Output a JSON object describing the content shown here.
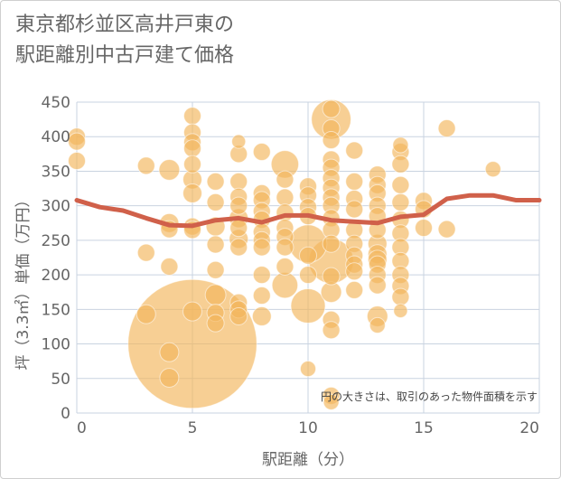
{
  "title_line1": "東京都杉並区高井戸東の",
  "title_line2": "駅距離別中古戸建て価格",
  "chart_data": {
    "type": "scatter",
    "xlabel": "駅距離（分）",
    "ylabel": "坪（3.3㎡）単価（万円）",
    "xlim": [
      0,
      20
    ],
    "ylim": [
      0,
      450
    ],
    "xticks": [
      0,
      5,
      10,
      15,
      20
    ],
    "yticks": [
      0,
      50,
      100,
      150,
      200,
      250,
      300,
      350,
      400,
      450
    ],
    "grid": true,
    "annotation": "円の大きさは、取引のあった物件面積を示す",
    "colors": {
      "bubble": "#f2b55a",
      "line": "#d0604a",
      "grid": "#c9d3e0"
    },
    "bubbles": [
      {
        "x": 0,
        "y": 400,
        "s": 1
      },
      {
        "x": 0,
        "y": 393,
        "s": 1
      },
      {
        "x": 0,
        "y": 365,
        "s": 1
      },
      {
        "x": 3,
        "y": 358,
        "s": 1
      },
      {
        "x": 3,
        "y": 232,
        "s": 1
      },
      {
        "x": 3,
        "y": 143,
        "s": 1.1
      },
      {
        "x": 4,
        "y": 352,
        "s": 1.2
      },
      {
        "x": 4,
        "y": 275,
        "s": 1.1
      },
      {
        "x": 4,
        "y": 266,
        "s": 1
      },
      {
        "x": 4,
        "y": 212,
        "s": 1
      },
      {
        "x": 4,
        "y": 88,
        "s": 1.1
      },
      {
        "x": 4,
        "y": 51,
        "s": 1.1
      },
      {
        "x": 5,
        "y": 430,
        "s": 1
      },
      {
        "x": 5,
        "y": 406,
        "s": 1
      },
      {
        "x": 5,
        "y": 392,
        "s": 1
      },
      {
        "x": 5,
        "y": 383,
        "s": 1
      },
      {
        "x": 5,
        "y": 360,
        "s": 1
      },
      {
        "x": 5,
        "y": 338,
        "s": 1.1
      },
      {
        "x": 5,
        "y": 318,
        "s": 1.1
      },
      {
        "x": 5,
        "y": 270,
        "s": 1
      },
      {
        "x": 5,
        "y": 265,
        "s": 1
      },
      {
        "x": 5,
        "y": 147,
        "s": 1.1
      },
      {
        "x": 5,
        "y": 100,
        "s": 7.5
      },
      {
        "x": 6,
        "y": 335,
        "s": 1
      },
      {
        "x": 6,
        "y": 305,
        "s": 1
      },
      {
        "x": 6,
        "y": 270,
        "s": 1.1
      },
      {
        "x": 6,
        "y": 244,
        "s": 1
      },
      {
        "x": 6,
        "y": 207,
        "s": 1
      },
      {
        "x": 6,
        "y": 171,
        "s": 1.2
      },
      {
        "x": 6,
        "y": 145,
        "s": 1
      },
      {
        "x": 6,
        "y": 130,
        "s": 1
      },
      {
        "x": 7,
        "y": 393,
        "s": 0.8
      },
      {
        "x": 7,
        "y": 375,
        "s": 1
      },
      {
        "x": 7,
        "y": 335,
        "s": 1
      },
      {
        "x": 7,
        "y": 313,
        "s": 1
      },
      {
        "x": 7,
        "y": 300,
        "s": 1
      },
      {
        "x": 7,
        "y": 282,
        "s": 1.1
      },
      {
        "x": 7,
        "y": 268,
        "s": 1
      },
      {
        "x": 7,
        "y": 252,
        "s": 1.1
      },
      {
        "x": 7,
        "y": 240,
        "s": 1
      },
      {
        "x": 7,
        "y": 160,
        "s": 1
      },
      {
        "x": 7,
        "y": 150,
        "s": 1
      },
      {
        "x": 7,
        "y": 140,
        "s": 1
      },
      {
        "x": 8,
        "y": 378,
        "s": 1
      },
      {
        "x": 8,
        "y": 318,
        "s": 1
      },
      {
        "x": 8,
        "y": 308,
        "s": 1
      },
      {
        "x": 8,
        "y": 292,
        "s": 1
      },
      {
        "x": 8,
        "y": 280,
        "s": 1
      },
      {
        "x": 8,
        "y": 262,
        "s": 1
      },
      {
        "x": 8,
        "y": 250,
        "s": 1
      },
      {
        "x": 8,
        "y": 240,
        "s": 1
      },
      {
        "x": 8,
        "y": 200,
        "s": 1
      },
      {
        "x": 8,
        "y": 170,
        "s": 1
      },
      {
        "x": 8,
        "y": 140,
        "s": 1.1
      },
      {
        "x": 9,
        "y": 360,
        "s": 1.6
      },
      {
        "x": 9,
        "y": 338,
        "s": 1
      },
      {
        "x": 9,
        "y": 312,
        "s": 1
      },
      {
        "x": 9,
        "y": 290,
        "s": 1
      },
      {
        "x": 9,
        "y": 268,
        "s": 1
      },
      {
        "x": 9,
        "y": 255,
        "s": 1
      },
      {
        "x": 9,
        "y": 240,
        "s": 1
      },
      {
        "x": 9,
        "y": 212,
        "s": 1
      },
      {
        "x": 9,
        "y": 185,
        "s": 1.5
      },
      {
        "x": 10,
        "y": 328,
        "s": 1
      },
      {
        "x": 10,
        "y": 315,
        "s": 1
      },
      {
        "x": 10,
        "y": 298,
        "s": 1
      },
      {
        "x": 10,
        "y": 285,
        "s": 1
      },
      {
        "x": 10,
        "y": 245,
        "s": 2.2
      },
      {
        "x": 10,
        "y": 228,
        "s": 1
      },
      {
        "x": 10,
        "y": 200,
        "s": 1
      },
      {
        "x": 10,
        "y": 155,
        "s": 2.0
      },
      {
        "x": 10,
        "y": 64,
        "s": 0.9
      },
      {
        "x": 11,
        "y": 440,
        "s": 1
      },
      {
        "x": 11,
        "y": 425,
        "s": 2.3
      },
      {
        "x": 11,
        "y": 412,
        "s": 1
      },
      {
        "x": 11,
        "y": 395,
        "s": 1
      },
      {
        "x": 11,
        "y": 367,
        "s": 1
      },
      {
        "x": 11,
        "y": 355,
        "s": 1
      },
      {
        "x": 11,
        "y": 340,
        "s": 1
      },
      {
        "x": 11,
        "y": 326,
        "s": 1
      },
      {
        "x": 11,
        "y": 312,
        "s": 1
      },
      {
        "x": 11,
        "y": 300,
        "s": 1
      },
      {
        "x": 11,
        "y": 282,
        "s": 1
      },
      {
        "x": 11,
        "y": 265,
        "s": 1
      },
      {
        "x": 11,
        "y": 245,
        "s": 1
      },
      {
        "x": 11,
        "y": 220,
        "s": 2.6
      },
      {
        "x": 11,
        "y": 198,
        "s": 1
      },
      {
        "x": 11,
        "y": 175,
        "s": 1.2
      },
      {
        "x": 11,
        "y": 135,
        "s": 1
      },
      {
        "x": 11,
        "y": 120,
        "s": 1
      },
      {
        "x": 11,
        "y": 25,
        "s": 1
      },
      {
        "x": 11,
        "y": 16,
        "s": 0.9
      },
      {
        "x": 12,
        "y": 380,
        "s": 1
      },
      {
        "x": 12,
        "y": 335,
        "s": 1
      },
      {
        "x": 12,
        "y": 310,
        "s": 1
      },
      {
        "x": 12,
        "y": 295,
        "s": 1
      },
      {
        "x": 12,
        "y": 265,
        "s": 1
      },
      {
        "x": 12,
        "y": 245,
        "s": 1
      },
      {
        "x": 12,
        "y": 228,
        "s": 1
      },
      {
        "x": 12,
        "y": 215,
        "s": 1
      },
      {
        "x": 12,
        "y": 205,
        "s": 1
      },
      {
        "x": 12,
        "y": 178,
        "s": 1
      },
      {
        "x": 13,
        "y": 345,
        "s": 1
      },
      {
        "x": 13,
        "y": 330,
        "s": 1
      },
      {
        "x": 13,
        "y": 318,
        "s": 1
      },
      {
        "x": 13,
        "y": 300,
        "s": 1
      },
      {
        "x": 13,
        "y": 285,
        "s": 1
      },
      {
        "x": 13,
        "y": 265,
        "s": 1
      },
      {
        "x": 13,
        "y": 245,
        "s": 1.1
      },
      {
        "x": 13,
        "y": 230,
        "s": 1.1
      },
      {
        "x": 13,
        "y": 222,
        "s": 1.1
      },
      {
        "x": 13,
        "y": 215,
        "s": 1
      },
      {
        "x": 13,
        "y": 200,
        "s": 1
      },
      {
        "x": 13,
        "y": 185,
        "s": 1
      },
      {
        "x": 13,
        "y": 140,
        "s": 1.2
      },
      {
        "x": 13,
        "y": 127,
        "s": 0.9
      },
      {
        "x": 14,
        "y": 388,
        "s": 0.9
      },
      {
        "x": 14,
        "y": 378,
        "s": 1
      },
      {
        "x": 14,
        "y": 360,
        "s": 1
      },
      {
        "x": 14,
        "y": 330,
        "s": 1
      },
      {
        "x": 14,
        "y": 305,
        "s": 1
      },
      {
        "x": 14,
        "y": 280,
        "s": 1
      },
      {
        "x": 14,
        "y": 260,
        "s": 1
      },
      {
        "x": 14,
        "y": 240,
        "s": 1
      },
      {
        "x": 14,
        "y": 220,
        "s": 1
      },
      {
        "x": 14,
        "y": 200,
        "s": 1
      },
      {
        "x": 14,
        "y": 184,
        "s": 1
      },
      {
        "x": 14,
        "y": 168,
        "s": 1
      },
      {
        "x": 14,
        "y": 148,
        "s": 0.8
      },
      {
        "x": 15,
        "y": 307,
        "s": 1
      },
      {
        "x": 15,
        "y": 295,
        "s": 1
      },
      {
        "x": 15,
        "y": 268,
        "s": 1
      },
      {
        "x": 16,
        "y": 412,
        "s": 1
      },
      {
        "x": 16,
        "y": 266,
        "s": 1
      },
      {
        "x": 18,
        "y": 353,
        "s": 0.9
      }
    ],
    "series": [
      {
        "x": [
          0,
          1,
          2,
          3,
          4,
          5,
          6,
          7,
          8,
          9,
          10,
          11,
          12,
          13,
          14,
          15,
          16,
          17,
          18,
          19,
          20
        ],
        "values": [
          308,
          298,
          293,
          282,
          272,
          271,
          279,
          282,
          276,
          286,
          286,
          279,
          277,
          275,
          284,
          287,
          310,
          315,
          315,
          308,
          308
        ]
      }
    ]
  }
}
